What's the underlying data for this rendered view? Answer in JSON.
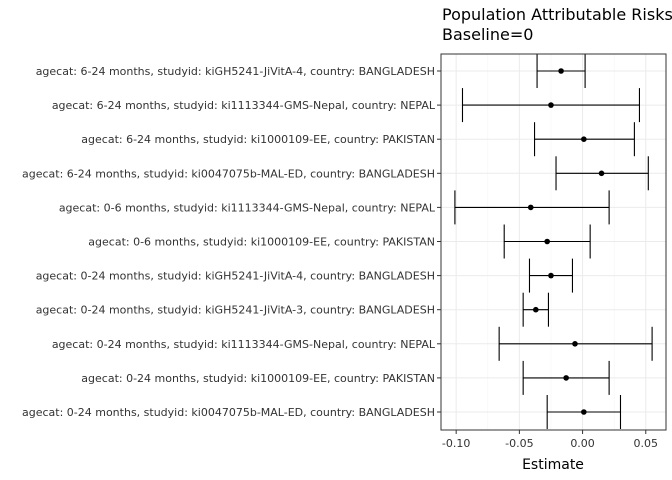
{
  "chart_data": {
    "type": "errorbar",
    "title": "Population Attributable Risks",
    "subtitle": "Baseline=0",
    "xlabel": "Estimate",
    "ylabel": "",
    "xlim": [
      -0.112,
      0.066
    ],
    "xticks": [
      -0.1,
      -0.05,
      0.0,
      0.05
    ],
    "xtick_labels": [
      "-0.10",
      "-0.05",
      "0.00",
      "0.05"
    ],
    "grid": true,
    "categories": [
      "agecat: 6-24 months, studyid: kiGH5241-JiVitA-4, country: BANGLADESH",
      "agecat: 6-24 months, studyid: ki1113344-GMS-Nepal, country: NEPAL",
      "agecat: 6-24 months, studyid: ki1000109-EE, country: PAKISTAN",
      "agecat: 6-24 months, studyid: ki0047075b-MAL-ED, country: BANGLADESH",
      "agecat: 0-6 months, studyid: ki1113344-GMS-Nepal, country: NEPAL",
      "agecat: 0-6 months, studyid: ki1000109-EE, country: PAKISTAN",
      "agecat: 0-24 months, studyid: kiGH5241-JiVitA-4, country: BANGLADESH",
      "agecat: 0-24 months, studyid: kiGH5241-JiVitA-3, country: BANGLADESH",
      "agecat: 0-24 months, studyid: ki1113344-GMS-Nepal, country: NEPAL",
      "agecat: 0-24 months, studyid: ki1000109-EE, country: PAKISTAN",
      "agecat: 0-24 months, studyid: ki0047075b-MAL-ED, country: BANGLADESH"
    ],
    "estimate": [
      -0.017,
      -0.025,
      0.001,
      0.015,
      -0.041,
      -0.028,
      -0.025,
      -0.037,
      -0.006,
      -0.013,
      0.001
    ],
    "lower": [
      -0.036,
      -0.095,
      -0.038,
      -0.021,
      -0.101,
      -0.062,
      -0.042,
      -0.047,
      -0.066,
      -0.047,
      -0.028
    ],
    "upper": [
      0.002,
      0.045,
      0.041,
      0.052,
      0.021,
      0.006,
      -0.008,
      -0.027,
      0.055,
      0.021,
      0.03
    ]
  }
}
